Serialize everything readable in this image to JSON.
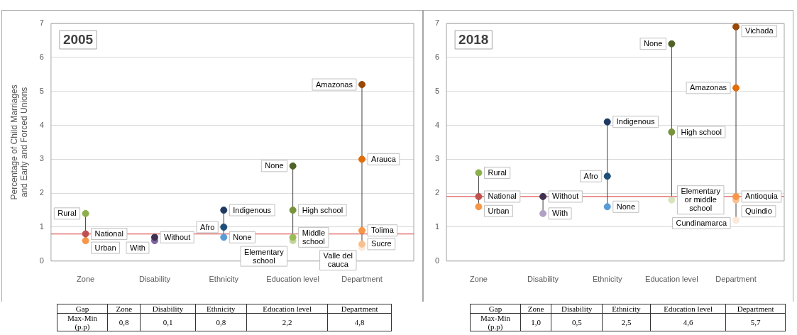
{
  "chart_data": [
    {
      "type": "scatter",
      "title": "2005",
      "ylabel": "Percentage of Child Marriages and Early and Forced Unions",
      "categories": [
        "Zone",
        "Disability",
        "Ethnicity",
        "Education level",
        "Department"
      ],
      "ylim": [
        0,
        7
      ],
      "yticks": [
        0,
        1,
        2,
        3,
        4,
        5,
        6,
        7
      ],
      "grid": "y",
      "marker": "circle",
      "ref_lines": [
        {
          "axis": "y",
          "value": 0.8,
          "color": "#e05a5a"
        }
      ],
      "series": [
        {
          "name": "Rural",
          "color": "#8db04a",
          "x": [
            "Zone"
          ],
          "values": [
            1.4
          ]
        },
        {
          "name": "National",
          "color": "#c0504d",
          "x": [
            "Zone"
          ],
          "values": [
            0.8
          ]
        },
        {
          "name": "Urban",
          "color": "#f79646",
          "x": [
            "Zone"
          ],
          "values": [
            0.6
          ]
        },
        {
          "name": "Without",
          "color": "#403152",
          "x": [
            "Disability"
          ],
          "values": [
            0.7
          ]
        },
        {
          "name": "With",
          "color": "#8064a2",
          "x": [
            "Disability"
          ],
          "values": [
            0.6
          ]
        },
        {
          "name": "Indigenous",
          "color": "#1f3864",
          "x": [
            "Ethnicity"
          ],
          "values": [
            1.5
          ]
        },
        {
          "name": "Afro",
          "color": "#1f4e79",
          "x": [
            "Ethnicity"
          ],
          "values": [
            1.0
          ]
        },
        {
          "name": "None",
          "color": "#5b9bd5",
          "x": [
            "Ethnicity"
          ],
          "values": [
            0.7
          ]
        },
        {
          "name": "None",
          "color": "#4f6228",
          "x": [
            "Education level"
          ],
          "values": [
            2.8
          ]
        },
        {
          "name": "High school",
          "color": "#77933c",
          "x": [
            "Education level"
          ],
          "values": [
            1.5
          ]
        },
        {
          "name": "Middle school",
          "color": "#9bbb59",
          "x": [
            "Education level"
          ],
          "values": [
            0.7
          ]
        },
        {
          "name": "Elementary school",
          "color": "#c3d69b",
          "x": [
            "Education level"
          ],
          "values": [
            0.6
          ]
        },
        {
          "name": "Amazonas",
          "color": "#984807",
          "x": [
            "Department"
          ],
          "values": [
            5.2
          ]
        },
        {
          "name": "Arauca",
          "color": "#e36c09",
          "x": [
            "Department"
          ],
          "values": [
            3.0
          ]
        },
        {
          "name": "Tolima",
          "color": "#f79646",
          "x": [
            "Department"
          ],
          "values": [
            0.9
          ]
        },
        {
          "name": "Sucre",
          "color": "#fabf8f",
          "x": [
            "Department"
          ],
          "values": [
            0.5
          ]
        },
        {
          "name": "Valle del cauca",
          "color": "#fde9d9",
          "x": [
            "Department"
          ],
          "values": [
            0.4
          ]
        }
      ]
    },
    {
      "type": "scatter",
      "title": "2018",
      "categories": [
        "Zone",
        "Disability",
        "Ethnicity",
        "Education level",
        "Department"
      ],
      "ylim": [
        0,
        7
      ],
      "yticks": [
        0,
        1,
        2,
        3,
        4,
        5,
        6,
        7
      ],
      "grid": "y",
      "marker": "circle",
      "ref_lines": [
        {
          "axis": "y",
          "value": 1.9,
          "color": "#e05a5a"
        }
      ],
      "series": [
        {
          "name": "Rural",
          "color": "#8db04a",
          "x": [
            "Zone"
          ],
          "values": [
            2.6
          ]
        },
        {
          "name": "National",
          "color": "#c0504d",
          "x": [
            "Zone"
          ],
          "values": [
            1.9
          ]
        },
        {
          "name": "Urban",
          "color": "#f79646",
          "x": [
            "Zone"
          ],
          "values": [
            1.6
          ]
        },
        {
          "name": "Without",
          "color": "#403152",
          "x": [
            "Disability"
          ],
          "values": [
            1.9
          ]
        },
        {
          "name": "With",
          "color": "#b2a1c7",
          "x": [
            "Disability"
          ],
          "values": [
            1.4
          ]
        },
        {
          "name": "Indigenous",
          "color": "#1f3864",
          "x": [
            "Ethnicity"
          ],
          "values": [
            4.1
          ]
        },
        {
          "name": "Afro",
          "color": "#1f4e79",
          "x": [
            "Ethnicity"
          ],
          "values": [
            2.5
          ]
        },
        {
          "name": "None",
          "color": "#5b9bd5",
          "x": [
            "Ethnicity"
          ],
          "values": [
            1.6
          ]
        },
        {
          "name": "None",
          "color": "#4f6228",
          "x": [
            "Education level"
          ],
          "values": [
            6.4
          ]
        },
        {
          "name": "High school",
          "color": "#77933c",
          "x": [
            "Education level"
          ],
          "values": [
            3.8
          ]
        },
        {
          "name": "Elementary or middle school",
          "color": "#d7e4bd",
          "x": [
            "Education level"
          ],
          "values": [
            1.8
          ]
        },
        {
          "name": "Vichada",
          "color": "#984807",
          "x": [
            "Department"
          ],
          "values": [
            6.9
          ]
        },
        {
          "name": "Amazonas",
          "color": "#e36c09",
          "x": [
            "Department"
          ],
          "values": [
            5.1
          ]
        },
        {
          "name": "Antioquia",
          "color": "#f79646",
          "x": [
            "Department"
          ],
          "values": [
            1.9
          ]
        },
        {
          "name": "Quindio",
          "color": "#fac090",
          "x": [
            "Department"
          ],
          "values": [
            1.8
          ]
        },
        {
          "name": "Cundinamarca",
          "color": "#fde9d9",
          "x": [
            "Department"
          ],
          "values": [
            1.2
          ]
        }
      ]
    },
    {
      "type": "other",
      "xlabel": "Gap",
      "ylabel": "Max-Min (p.p)",
      "categories": [
        "Zone",
        "Disability",
        "Ethnicity",
        "Education level",
        "Department"
      ],
      "value_labels": [
        "0,8",
        "0,1",
        "0,8",
        "2,2",
        "4,8"
      ]
    },
    {
      "type": "other",
      "xlabel": "Gap",
      "ylabel": "Max-Min (p.p)",
      "categories": [
        "Zone",
        "Disability",
        "Ethnicity",
        "Education level",
        "Department"
      ],
      "value_labels": [
        "1,0",
        "0,5",
        "2,5",
        "4,6",
        "5,7"
      ]
    }
  ]
}
